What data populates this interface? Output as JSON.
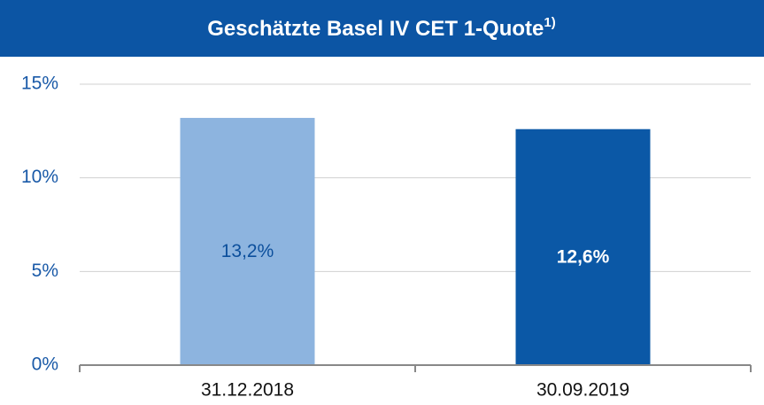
{
  "chart_data": {
    "type": "bar",
    "title": "Geschätzte Basel IV CET 1-Quote",
    "title_note": "1)",
    "categories": [
      "31.12.2018",
      "30.09.2019"
    ],
    "values": [
      13.2,
      12.6
    ],
    "value_labels": [
      "13,2%",
      "12,6%"
    ],
    "colors": [
      "#8db4df",
      "#0b58a6"
    ],
    "ylim": [
      0,
      15
    ],
    "yticks": [
      {
        "value": 0,
        "label": "0%"
      },
      {
        "value": 5,
        "label": "5%"
      },
      {
        "value": 10,
        "label": "10%"
      },
      {
        "value": 15,
        "label": "15%"
      }
    ],
    "grid": true
  }
}
